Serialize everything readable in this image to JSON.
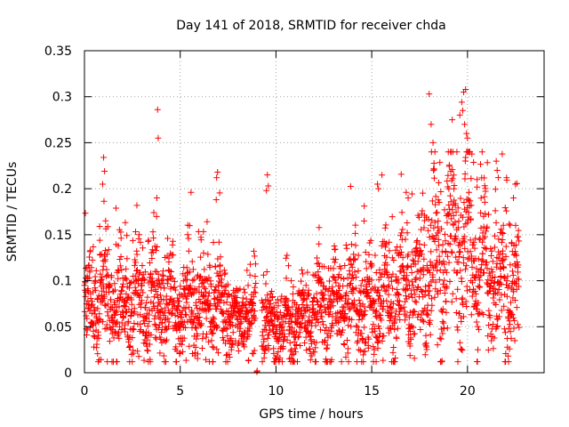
{
  "chart_data": {
    "type": "scatter",
    "title": "Day 141 of 2018, SRMTID for receiver chda",
    "xlabel": "GPS time / hours",
    "ylabel": "SRMTID / TECUs",
    "xlim": [
      0,
      24
    ],
    "ylim": [
      0,
      0.35
    ],
    "x_ticks": [
      0,
      5,
      10,
      15,
      20
    ],
    "x_tick_labels": [
      "0",
      "5",
      "10",
      "15",
      "20"
    ],
    "y_ticks": [
      0,
      0.05,
      0.1,
      0.15,
      0.2,
      0.25,
      0.3,
      0.35
    ],
    "y_tick_labels": [
      "0",
      "0.05",
      "0.1",
      "0.15",
      "0.2",
      "0.25",
      "0.3",
      "0.35"
    ],
    "grid": true,
    "marker": "+",
    "series": [
      {
        "name": "SRMTID",
        "color": "#ff0000",
        "generated": {
          "x_start": 0.0,
          "x_end": 22.7,
          "count": 2600,
          "seed": 141,
          "baseline_profile": [
            [
              0.0,
              0.065
            ],
            [
              1.0,
              0.085
            ],
            [
              2.0,
              0.075
            ],
            [
              3.0,
              0.08
            ],
            [
              4.0,
              0.08
            ],
            [
              5.0,
              0.07
            ],
            [
              6.0,
              0.075
            ],
            [
              7.0,
              0.07
            ],
            [
              8.0,
              0.05
            ],
            [
              9.0,
              0.06
            ],
            [
              10.0,
              0.05
            ],
            [
              11.0,
              0.055
            ],
            [
              12.0,
              0.07
            ],
            [
              13.0,
              0.075
            ],
            [
              14.0,
              0.07
            ],
            [
              15.0,
              0.075
            ],
            [
              16.0,
              0.08
            ],
            [
              17.0,
              0.085
            ],
            [
              18.0,
              0.11
            ],
            [
              19.0,
              0.13
            ],
            [
              20.0,
              0.13
            ],
            [
              21.0,
              0.11
            ],
            [
              22.0,
              0.1
            ],
            [
              22.7,
              0.09
            ]
          ],
          "gaps": [
            [
              8.95,
              9.25
            ]
          ]
        },
        "extra_points": [
          [
            3.82,
            0.286
          ],
          [
            3.85,
            0.255
          ],
          [
            3.78,
            0.19
          ],
          [
            1.0,
            0.234
          ],
          [
            1.05,
            0.219
          ],
          [
            0.95,
            0.205
          ],
          [
            6.95,
            0.218
          ],
          [
            6.9,
            0.212
          ],
          [
            6.88,
            0.188
          ],
          [
            9.55,
            0.215
          ],
          [
            9.6,
            0.203
          ],
          [
            9.5,
            0.198
          ],
          [
            15.3,
            0.205
          ],
          [
            15.35,
            0.2
          ],
          [
            14.6,
            0.165
          ],
          [
            16.8,
            0.196
          ],
          [
            16.9,
            0.19
          ],
          [
            18.0,
            0.303
          ],
          [
            18.1,
            0.27
          ],
          [
            18.2,
            0.25
          ],
          [
            18.3,
            0.24
          ],
          [
            19.2,
            0.275
          ],
          [
            19.6,
            0.28
          ],
          [
            19.8,
            0.305
          ],
          [
            19.9,
            0.308
          ],
          [
            19.7,
            0.294
          ],
          [
            19.75,
            0.285
          ],
          [
            19.85,
            0.27
          ],
          [
            20.0,
            0.255
          ],
          [
            20.1,
            0.24
          ],
          [
            19.95,
            0.26
          ],
          [
            21.5,
            0.23
          ],
          [
            21.55,
            0.22
          ],
          [
            22.5,
            0.205
          ],
          [
            22.4,
            0.19
          ],
          [
            20.5,
            0.21
          ],
          [
            9.0,
            0.001
          ],
          [
            9.02,
            0.002
          ]
        ]
      }
    ]
  }
}
